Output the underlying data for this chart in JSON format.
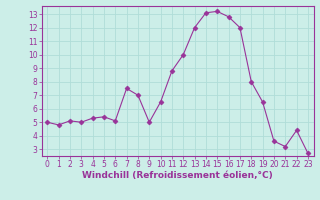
{
  "x": [
    0,
    1,
    2,
    3,
    4,
    5,
    6,
    7,
    8,
    9,
    10,
    11,
    12,
    13,
    14,
    15,
    16,
    17,
    18,
    19,
    20,
    21,
    22,
    23
  ],
  "y": [
    5.0,
    4.8,
    5.1,
    5.0,
    5.3,
    5.4,
    5.1,
    7.5,
    7.0,
    5.0,
    6.5,
    8.8,
    10.0,
    12.0,
    13.1,
    13.2,
    12.8,
    12.0,
    8.0,
    6.5,
    3.6,
    3.2,
    4.4,
    2.7
  ],
  "line_color": "#993399",
  "marker": "D",
  "marker_size": 2.5,
  "bg_color": "#cceee8",
  "grid_color": "#b0ddd8",
  "xlabel": "Windchill (Refroidissement éolien,°C)",
  "xlim": [
    -0.5,
    23.5
  ],
  "ylim": [
    2.5,
    13.6
  ],
  "yticks": [
    3,
    4,
    5,
    6,
    7,
    8,
    9,
    10,
    11,
    12,
    13
  ],
  "xticks": [
    0,
    1,
    2,
    3,
    4,
    5,
    6,
    7,
    8,
    9,
    10,
    11,
    12,
    13,
    14,
    15,
    16,
    17,
    18,
    19,
    20,
    21,
    22,
    23
  ],
  "xlabel_fontsize": 6.5,
  "tick_fontsize": 5.5,
  "label_color": "#993399",
  "spine_color": "#993399"
}
